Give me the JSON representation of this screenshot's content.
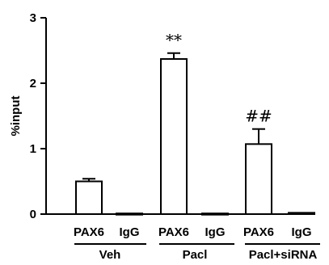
{
  "chart_data": {
    "type": "bar",
    "ylabel": "%input",
    "xlabel": "",
    "ylim": [
      0,
      3
    ],
    "yticks": [
      "0",
      "1",
      "2",
      "3"
    ],
    "categories": [
      "PAX6",
      "IgG",
      "PAX6",
      "IgG",
      "PAX6",
      "IgG"
    ],
    "groups": [
      "Veh",
      "Pacl",
      "Pacl+siRNA"
    ],
    "values": [
      0.5,
      0.01,
      2.37,
      0.01,
      1.07,
      0.02
    ],
    "errors": [
      0.04,
      0.0,
      0.09,
      0.0,
      0.23,
      0.0
    ],
    "annotations": [
      "",
      "",
      "**",
      "",
      "##",
      ""
    ],
    "colors": {
      "bar_fill": "#ffffff",
      "bar_stroke": "#000000"
    },
    "grid": false,
    "legend": "none"
  }
}
